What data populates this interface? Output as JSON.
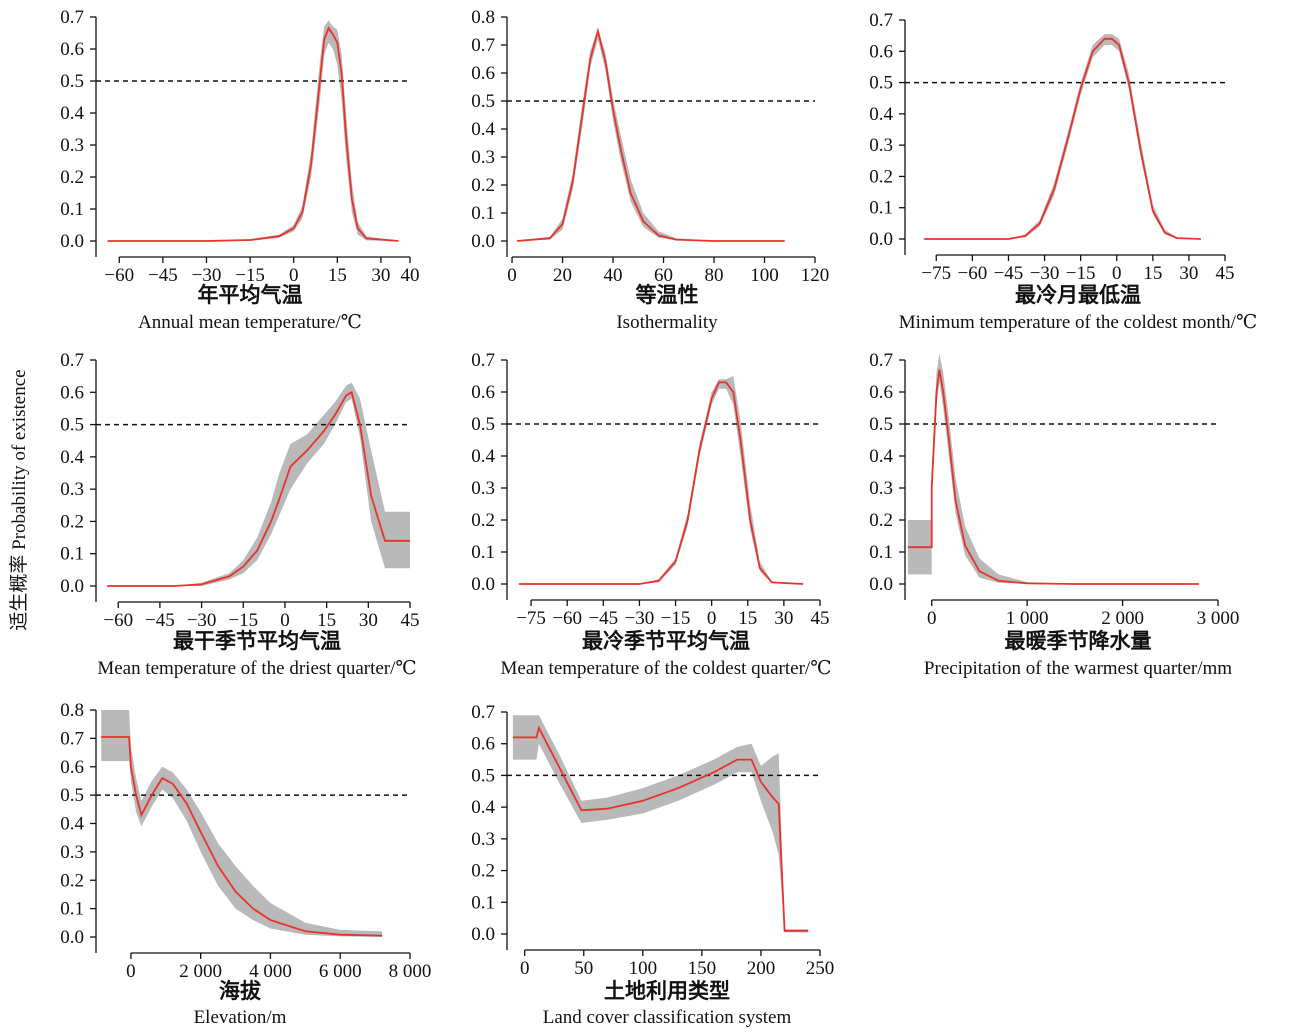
{
  "figure": {
    "ylabel": "适生概率 Probability of existence",
    "threshold": 0.5,
    "colors": {
      "response": "#e8332a",
      "confidence_band": "#b9b9b9",
      "axis": "#111111",
      "threshold_line": "#111111"
    }
  },
  "chart_data": [
    {
      "type": "line",
      "title_cn": "年平均气温",
      "title_en": "Annual mean temperature/℃",
      "xlim": [
        -68,
        40
      ],
      "ylim": [
        0,
        0.7
      ],
      "xticks": [
        -60,
        -45,
        -30,
        -15,
        0,
        15,
        30,
        40
      ],
      "xtick_labels": [
        "−60",
        "−45",
        "−30",
        "−15",
        "0",
        "15",
        "30",
        "40"
      ],
      "yticks": [
        0,
        0.1,
        0.2,
        0.3,
        0.4,
        0.5,
        0.6,
        0.7
      ],
      "ytick_labels": [
        "0.0",
        "0.1",
        "0.2",
        "0.3",
        "0.4",
        "0.5",
        "0.6",
        "0.7"
      ],
      "hline": 0.5,
      "series": {
        "x": [
          -64,
          -30,
          -15,
          -5,
          0,
          3,
          6,
          9,
          10.5,
          12,
          13.5,
          15,
          16.5,
          18,
          20,
          22,
          25,
          36
        ],
        "y": [
          0.0,
          0.0,
          0.003,
          0.015,
          0.04,
          0.09,
          0.24,
          0.5,
          0.63,
          0.665,
          0.645,
          0.62,
          0.52,
          0.33,
          0.13,
          0.04,
          0.008,
          0.0
        ],
        "lower": [
          0.0,
          0.0,
          0.0,
          0.01,
          0.03,
          0.07,
          0.2,
          0.44,
          0.58,
          0.62,
          0.6,
          0.55,
          0.44,
          0.26,
          0.09,
          0.02,
          0.002,
          0.0
        ],
        "upper": [
          0.0,
          0.0,
          0.006,
          0.02,
          0.05,
          0.11,
          0.28,
          0.56,
          0.67,
          0.69,
          0.67,
          0.66,
          0.58,
          0.4,
          0.18,
          0.06,
          0.015,
          0.0
        ]
      }
    },
    {
      "type": "line",
      "title_cn": "等温性",
      "title_en": "Isothermality",
      "xlim": [
        -2,
        120
      ],
      "ylim": [
        0,
        0.8
      ],
      "xticks": [
        0,
        20,
        40,
        60,
        80,
        100,
        120
      ],
      "xtick_labels": [
        "0",
        "20",
        "40",
        "60",
        "80",
        "100",
        "120"
      ],
      "yticks": [
        0,
        0.1,
        0.2,
        0.3,
        0.4,
        0.5,
        0.6,
        0.7,
        0.8
      ],
      "ytick_labels": [
        "0.0",
        "0.1",
        "0.2",
        "0.3",
        "0.4",
        "0.5",
        "0.6",
        "0.7",
        "0.8"
      ],
      "hline": 0.5,
      "series": {
        "x": [
          2,
          15,
          20,
          24,
          28,
          31,
          34,
          37,
          40,
          43,
          47,
          52,
          58,
          65,
          80,
          108
        ],
        "y": [
          0.0,
          0.01,
          0.06,
          0.21,
          0.46,
          0.65,
          0.75,
          0.64,
          0.47,
          0.33,
          0.17,
          0.07,
          0.02,
          0.005,
          0.0,
          0.0
        ],
        "lower": [
          0.0,
          0.005,
          0.04,
          0.18,
          0.42,
          0.62,
          0.72,
          0.61,
          0.43,
          0.29,
          0.14,
          0.05,
          0.012,
          0.002,
          0.0,
          0.0
        ],
        "upper": [
          0.0,
          0.015,
          0.08,
          0.24,
          0.5,
          0.68,
          0.76,
          0.67,
          0.51,
          0.38,
          0.22,
          0.1,
          0.035,
          0.01,
          0.0,
          0.0
        ]
      }
    },
    {
      "type": "line",
      "title_cn": "最冷月最低温",
      "title_en": "Minimum temperature of the coldest month/℃",
      "xlim": [
        -88,
        45
      ],
      "ylim": [
        0,
        0.7
      ],
      "xticks": [
        -75,
        -60,
        -45,
        -30,
        -15,
        0,
        15,
        30,
        45
      ],
      "xtick_labels": [
        "−75",
        "−60",
        "−45",
        "−30",
        "−15",
        "0",
        "15",
        "30",
        "45"
      ],
      "yticks": [
        0,
        0.1,
        0.2,
        0.3,
        0.4,
        0.5,
        0.6,
        0.7
      ],
      "ytick_labels": [
        "0.0",
        "0.1",
        "0.2",
        "0.3",
        "0.4",
        "0.5",
        "0.6",
        "0.7"
      ],
      "hline": 0.5,
      "series": {
        "x": [
          -80,
          -45,
          -38,
          -32,
          -26,
          -20,
          -15,
          -10,
          -5,
          -2,
          1,
          5,
          10,
          15,
          20,
          25,
          35
        ],
        "y": [
          0.0,
          0.0,
          0.01,
          0.05,
          0.16,
          0.33,
          0.48,
          0.6,
          0.64,
          0.64,
          0.62,
          0.5,
          0.28,
          0.09,
          0.02,
          0.003,
          0.0
        ],
        "lower": [
          0.0,
          0.0,
          0.005,
          0.04,
          0.14,
          0.31,
          0.46,
          0.58,
          0.62,
          0.62,
          0.6,
          0.48,
          0.26,
          0.08,
          0.015,
          0.002,
          0.0
        ],
        "upper": [
          0.0,
          0.0,
          0.015,
          0.06,
          0.18,
          0.35,
          0.5,
          0.62,
          0.655,
          0.655,
          0.64,
          0.53,
          0.31,
          0.11,
          0.03,
          0.005,
          0.0
        ]
      }
    },
    {
      "type": "line",
      "title_cn": "最干季节平均气温",
      "title_en": "Mean temperature of the driest quarter/℃",
      "xlim": [
        -68,
        45
      ],
      "ylim": [
        0,
        0.7
      ],
      "xticks": [
        -60,
        -45,
        -30,
        -15,
        0,
        15,
        30,
        45
      ],
      "xtick_labels": [
        "−60",
        "−45",
        "−30",
        "−15",
        "0",
        "15",
        "30",
        "45"
      ],
      "yticks": [
        0,
        0.1,
        0.2,
        0.3,
        0.4,
        0.5,
        0.6,
        0.7
      ],
      "ytick_labels": [
        "0.0",
        "0.1",
        "0.2",
        "0.3",
        "0.4",
        "0.5",
        "0.6",
        "0.7"
      ],
      "hline": 0.5,
      "series": {
        "x": [
          -64,
          -40,
          -30,
          -20,
          -15,
          -10,
          -5,
          -2,
          2,
          8,
          14,
          18,
          22,
          24,
          27,
          31,
          36,
          45
        ],
        "y": [
          0.0,
          0.0,
          0.005,
          0.03,
          0.06,
          0.11,
          0.2,
          0.27,
          0.37,
          0.42,
          0.48,
          0.53,
          0.59,
          0.6,
          0.5,
          0.28,
          0.14,
          0.14
        ],
        "lower": [
          0.0,
          0.0,
          0.0,
          0.02,
          0.04,
          0.08,
          0.16,
          0.22,
          0.3,
          0.38,
          0.44,
          0.5,
          0.57,
          0.58,
          0.46,
          0.2,
          0.055,
          0.055
        ],
        "upper": [
          0.0,
          0.0,
          0.01,
          0.04,
          0.08,
          0.15,
          0.26,
          0.35,
          0.44,
          0.47,
          0.53,
          0.57,
          0.62,
          0.63,
          0.58,
          0.42,
          0.23,
          0.23
        ]
      }
    },
    {
      "type": "line",
      "title_cn": "最冷季节平均气温",
      "title_en": "Mean temperature of the coldest quarter/℃",
      "xlim": [
        -85,
        45
      ],
      "ylim": [
        0,
        0.7
      ],
      "xticks": [
        -75,
        -60,
        -45,
        -30,
        -15,
        0,
        15,
        30,
        45
      ],
      "xtick_labels": [
        "−75",
        "−60",
        "−45",
        "−30",
        "−15",
        "0",
        "15",
        "30",
        "45"
      ],
      "yticks": [
        0,
        0.1,
        0.2,
        0.3,
        0.4,
        0.5,
        0.6,
        0.7
      ],
      "ytick_labels": [
        "0.0",
        "0.1",
        "0.2",
        "0.3",
        "0.4",
        "0.5",
        "0.6",
        "0.7"
      ],
      "hline": 0.5,
      "series": {
        "x": [
          -80,
          -30,
          -22,
          -15,
          -10,
          -5,
          0,
          3,
          6,
          9,
          12,
          16,
          20,
          25,
          38
        ],
        "y": [
          0.0,
          0.0,
          0.01,
          0.07,
          0.2,
          0.42,
          0.58,
          0.63,
          0.63,
          0.6,
          0.45,
          0.2,
          0.05,
          0.005,
          0.0
        ],
        "lower": [
          0.0,
          0.0,
          0.005,
          0.06,
          0.18,
          0.4,
          0.56,
          0.61,
          0.61,
          0.56,
          0.4,
          0.17,
          0.04,
          0.003,
          0.0
        ],
        "upper": [
          0.0,
          0.0,
          0.015,
          0.08,
          0.22,
          0.44,
          0.6,
          0.64,
          0.64,
          0.65,
          0.51,
          0.25,
          0.07,
          0.008,
          0.0
        ]
      }
    },
    {
      "type": "line",
      "title_cn": "最暖季节降水量",
      "title_en": "Precipitation of the warmest quarter/mm",
      "xlim": [
        -280,
        3000
      ],
      "ylim": [
        0,
        0.7
      ],
      "xticks": [
        0,
        1000,
        2000,
        3000
      ],
      "xtick_labels": [
        "0",
        "1 000",
        "2 000",
        "3 000"
      ],
      "yticks": [
        0,
        0.1,
        0.2,
        0.3,
        0.4,
        0.5,
        0.6,
        0.7
      ],
      "ytick_labels": [
        "0.0",
        "0.1",
        "0.2",
        "0.3",
        "0.4",
        "0.5",
        "0.6",
        "0.7"
      ],
      "hline": 0.5,
      "series": {
        "x": [
          -250,
          0,
          0,
          50,
          80,
          120,
          180,
          250,
          350,
          500,
          700,
          1000,
          1500,
          2000,
          2800
        ],
        "y": [
          0.115,
          0.115,
          0.3,
          0.6,
          0.67,
          0.6,
          0.45,
          0.26,
          0.12,
          0.04,
          0.01,
          0.002,
          0.0,
          0.0,
          0.0
        ],
        "lower": [
          0.03,
          0.03,
          0.25,
          0.56,
          0.63,
          0.55,
          0.4,
          0.22,
          0.09,
          0.02,
          0.004,
          0.0,
          0.0,
          0.0,
          0.0
        ],
        "upper": [
          0.2,
          0.2,
          0.35,
          0.66,
          0.72,
          0.66,
          0.52,
          0.33,
          0.18,
          0.08,
          0.03,
          0.006,
          0.001,
          0.0,
          0.0
        ]
      }
    },
    {
      "type": "line",
      "title_cn": "海拔",
      "title_en": "Elevation/m",
      "xlim": [
        -1000,
        8000
      ],
      "ylim": [
        0,
        0.8
      ],
      "xticks": [
        0,
        2000,
        4000,
        6000,
        8000
      ],
      "xtick_labels": [
        "0",
        "2 000",
        "4 000",
        "6 000",
        "8 000"
      ],
      "yticks": [
        0,
        0.1,
        0.2,
        0.3,
        0.4,
        0.5,
        0.6,
        0.7,
        0.8
      ],
      "ytick_labels": [
        "0.0",
        "0.1",
        "0.2",
        "0.3",
        "0.4",
        "0.5",
        "0.6",
        "0.7",
        "0.8"
      ],
      "hline": 0.5,
      "series": {
        "x": [
          -850,
          -50,
          0,
          150,
          300,
          600,
          900,
          1200,
          1600,
          2000,
          2500,
          3000,
          3500,
          4000,
          5000,
          6000,
          7200
        ],
        "y": [
          0.705,
          0.705,
          0.6,
          0.5,
          0.43,
          0.5,
          0.56,
          0.54,
          0.47,
          0.37,
          0.25,
          0.16,
          0.1,
          0.06,
          0.02,
          0.008,
          0.005
        ],
        "lower": [
          0.62,
          0.62,
          0.55,
          0.44,
          0.39,
          0.46,
          0.52,
          0.49,
          0.41,
          0.3,
          0.18,
          0.1,
          0.06,
          0.03,
          0.008,
          0.002,
          0.0
        ],
        "upper": [
          0.8,
          0.8,
          0.67,
          0.56,
          0.48,
          0.55,
          0.6,
          0.58,
          0.52,
          0.44,
          0.33,
          0.25,
          0.18,
          0.12,
          0.05,
          0.025,
          0.02
        ]
      }
    },
    {
      "type": "line",
      "title_cn": "土地利用类型",
      "title_en": "Land cover classification system",
      "xlim": [
        -15,
        250
      ],
      "ylim": [
        0,
        0.7
      ],
      "xticks": [
        0,
        50,
        100,
        150,
        200,
        250
      ],
      "xtick_labels": [
        "0",
        "50",
        "100",
        "150",
        "200",
        "250"
      ],
      "yticks": [
        0,
        0.1,
        0.2,
        0.3,
        0.4,
        0.5,
        0.6,
        0.7
      ],
      "ytick_labels": [
        "0.0",
        "0.1",
        "0.2",
        "0.3",
        "0.4",
        "0.5",
        "0.6",
        "0.7"
      ],
      "hline": 0.5,
      "series": {
        "x": [
          -10,
          10,
          12,
          30,
          48,
          70,
          100,
          130,
          160,
          180,
          192,
          200,
          210,
          215,
          220,
          240
        ],
        "y": [
          0.62,
          0.62,
          0.65,
          0.52,
          0.39,
          0.395,
          0.42,
          0.46,
          0.51,
          0.55,
          0.55,
          0.48,
          0.43,
          0.41,
          0.01,
          0.01
        ],
        "lower": [
          0.55,
          0.55,
          0.6,
          0.47,
          0.35,
          0.36,
          0.38,
          0.42,
          0.47,
          0.51,
          0.51,
          0.42,
          0.32,
          0.25,
          0.005,
          0.005
        ],
        "upper": [
          0.69,
          0.69,
          0.69,
          0.56,
          0.42,
          0.43,
          0.46,
          0.5,
          0.55,
          0.59,
          0.6,
          0.53,
          0.56,
          0.57,
          0.015,
          0.015
        ]
      }
    }
  ]
}
